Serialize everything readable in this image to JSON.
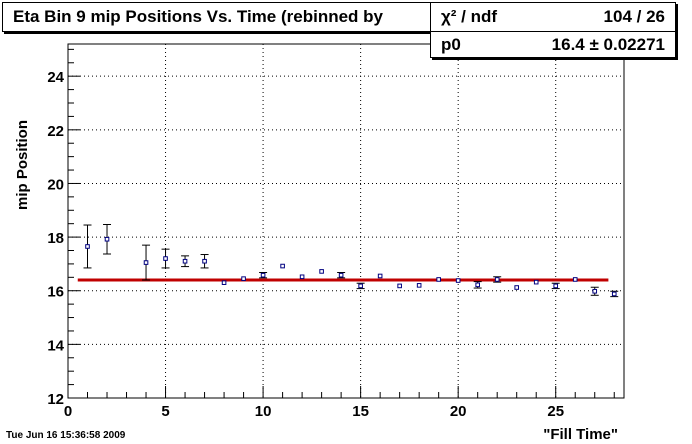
{
  "chart_data": {
    "type": "scatter",
    "title": "Eta Bin 9 mip Positions Vs. Time (rebinned by",
    "xlabel": "\"Fill Time\"",
    "ylabel": "mip Position",
    "xlim": [
      0,
      28.5
    ],
    "ylim": [
      12,
      25.2
    ],
    "xticks": [
      0,
      5,
      10,
      15,
      20,
      25
    ],
    "yticks": [
      12,
      14,
      16,
      18,
      20,
      22,
      24
    ],
    "grid": true,
    "series": [
      {
        "marker": "open-square",
        "color": "#000080",
        "points": [
          {
            "x": 1,
            "y": 17.65,
            "err": 0.8
          },
          {
            "x": 2,
            "y": 17.92,
            "err": 0.55
          },
          {
            "x": 4,
            "y": 17.05,
            "err": 0.65
          },
          {
            "x": 5,
            "y": 17.2,
            "err": 0.35
          },
          {
            "x": 6,
            "y": 17.1,
            "err": 0.2
          },
          {
            "x": 7,
            "y": 17.1,
            "err": 0.25
          },
          {
            "x": 8,
            "y": 16.3,
            "err": 0.05
          },
          {
            "x": 9,
            "y": 16.45,
            "err": 0.08
          },
          {
            "x": 10,
            "y": 16.58,
            "err": 0.1
          },
          {
            "x": 11,
            "y": 16.92,
            "err": 0.08
          },
          {
            "x": 12,
            "y": 16.52,
            "err": 0.06
          },
          {
            "x": 13,
            "y": 16.72,
            "err": 0.08
          },
          {
            "x": 14,
            "y": 16.58,
            "err": 0.1
          },
          {
            "x": 15,
            "y": 16.18,
            "err": 0.1
          },
          {
            "x": 16,
            "y": 16.55,
            "err": 0.04
          },
          {
            "x": 17,
            "y": 16.18,
            "err": 0.08
          },
          {
            "x": 18,
            "y": 16.2,
            "err": 0.08
          },
          {
            "x": 19,
            "y": 16.42,
            "err": 0.06
          },
          {
            "x": 20,
            "y": 16.38,
            "err": 0.08
          },
          {
            "x": 21,
            "y": 16.22,
            "err": 0.12
          },
          {
            "x": 22,
            "y": 16.42,
            "err": 0.1
          },
          {
            "x": 23,
            "y": 16.12,
            "err": 0.06
          },
          {
            "x": 24,
            "y": 16.32,
            "err": 0.06
          },
          {
            "x": 25,
            "y": 16.18,
            "err": 0.1
          },
          {
            "x": 26,
            "y": 16.42,
            "err": 0.06
          },
          {
            "x": 27,
            "y": 15.98,
            "err": 0.15
          },
          {
            "x": 28,
            "y": 15.88,
            "err": 0.1
          }
        ]
      }
    ],
    "fit": {
      "type": "constant",
      "y": 16.4,
      "x_from": 1,
      "x_to": 28,
      "color": "#c00000"
    }
  },
  "stats": {
    "chi2_label": "χ² / ndf",
    "chi2_value": "104 / 26",
    "p0_label": "p0",
    "p0_value": "16.4 ± 0.02271"
  },
  "footer": "Tue Jun 16 15:36:58 2009"
}
